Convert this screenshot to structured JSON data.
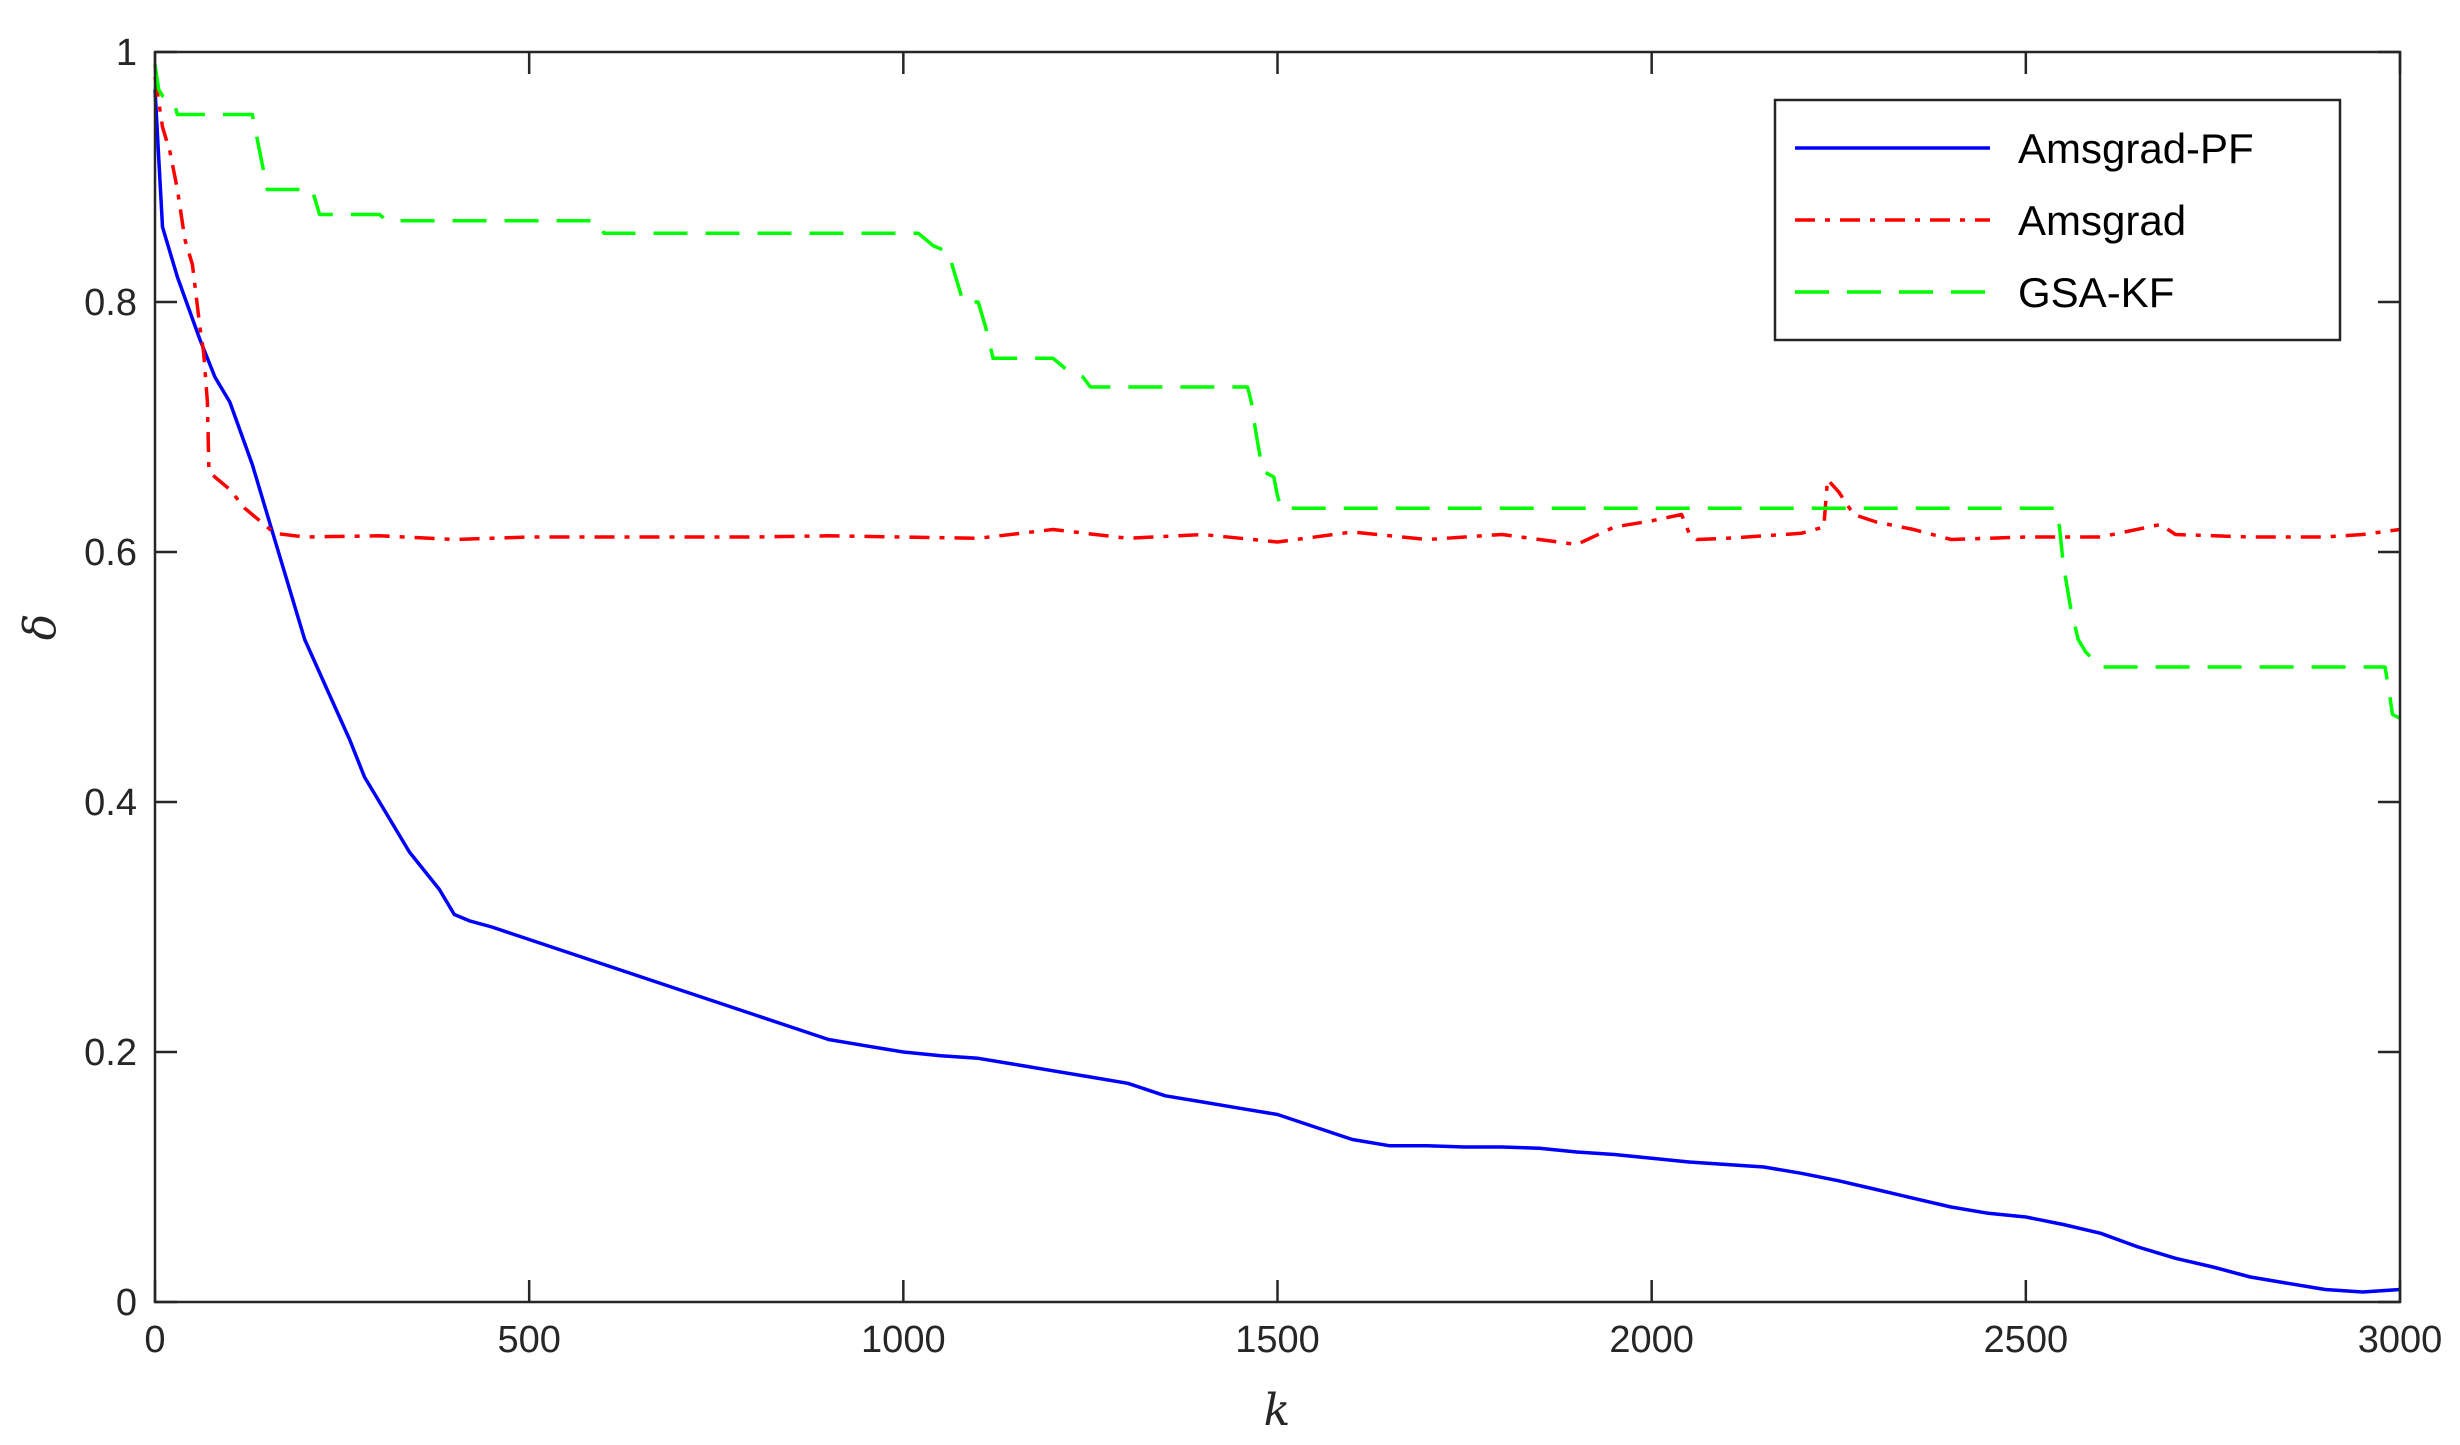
{
  "chart_data": {
    "type": "line",
    "title": "",
    "xlabel": "k",
    "ylabel": "δ",
    "xlim": [
      0,
      3000
    ],
    "ylim": [
      0,
      1
    ],
    "xticks": [
      0,
      500,
      1000,
      1500,
      2000,
      2500,
      3000
    ],
    "yticks": [
      0,
      0.2,
      0.4,
      0.6,
      0.8,
      1
    ],
    "xtick_labels": [
      "0",
      "500",
      "1000",
      "1500",
      "2000",
      "2500",
      "3000"
    ],
    "ytick_labels": [
      "0",
      "0.2",
      "0.4",
      "0.6",
      "0.8",
      "1"
    ],
    "grid": false,
    "legend_position": "top-right",
    "series": [
      {
        "name": "Amsgrad-PF",
        "color": "#0000ff",
        "dash": "solid",
        "x": [
          0,
          10,
          30,
          60,
          80,
          100,
          130,
          160,
          180,
          200,
          230,
          260,
          280,
          300,
          340,
          380,
          400,
          420,
          450,
          500,
          550,
          600,
          650,
          700,
          750,
          800,
          850,
          900,
          950,
          1000,
          1050,
          1100,
          1150,
          1200,
          1250,
          1300,
          1350,
          1400,
          1450,
          1500,
          1550,
          1600,
          1650,
          1700,
          1750,
          1800,
          1850,
          1900,
          1950,
          2000,
          2050,
          2100,
          2150,
          2200,
          2250,
          2300,
          2350,
          2400,
          2450,
          2500,
          2550,
          2600,
          2650,
          2700,
          2750,
          2800,
          2850,
          2900,
          2950,
          3000
        ],
        "y": [
          0.97,
          0.86,
          0.82,
          0.77,
          0.74,
          0.72,
          0.67,
          0.61,
          0.57,
          0.53,
          0.49,
          0.45,
          0.42,
          0.4,
          0.36,
          0.33,
          0.31,
          0.305,
          0.3,
          0.29,
          0.28,
          0.27,
          0.26,
          0.25,
          0.24,
          0.23,
          0.22,
          0.21,
          0.205,
          0.2,
          0.197,
          0.195,
          0.19,
          0.185,
          0.18,
          0.175,
          0.165,
          0.16,
          0.155,
          0.15,
          0.14,
          0.13,
          0.125,
          0.125,
          0.124,
          0.124,
          0.123,
          0.12,
          0.118,
          0.115,
          0.112,
          0.11,
          0.108,
          0.103,
          0.097,
          0.09,
          0.083,
          0.076,
          0.071,
          0.068,
          0.062,
          0.055,
          0.044,
          0.035,
          0.028,
          0.02,
          0.015,
          0.01,
          0.008,
          0.01
        ]
      },
      {
        "name": "Amsgrad",
        "color": "#ff0000",
        "dash": "dashdot",
        "x": [
          0,
          10,
          20,
          30,
          40,
          50,
          60,
          65,
          70,
          72,
          80,
          100,
          120,
          140,
          160,
          200,
          300,
          400,
          500,
          600,
          700,
          800,
          900,
          1000,
          1100,
          1200,
          1300,
          1400,
          1500,
          1600,
          1700,
          1800,
          1900,
          1950,
          2000,
          2040,
          2050,
          2060,
          2100,
          2200,
          2230,
          2235,
          2250,
          2270,
          2300,
          2350,
          2400,
          2500,
          2600,
          2680,
          2700,
          2800,
          2900,
          2950,
          3000
        ],
        "y": [
          0.98,
          0.94,
          0.92,
          0.89,
          0.85,
          0.83,
          0.78,
          0.76,
          0.72,
          0.665,
          0.66,
          0.65,
          0.635,
          0.625,
          0.615,
          0.612,
          0.613,
          0.61,
          0.612,
          0.612,
          0.612,
          0.612,
          0.613,
          0.612,
          0.611,
          0.618,
          0.611,
          0.614,
          0.608,
          0.616,
          0.61,
          0.614,
          0.606,
          0.62,
          0.625,
          0.63,
          0.615,
          0.61,
          0.611,
          0.615,
          0.62,
          0.658,
          0.648,
          0.63,
          0.624,
          0.618,
          0.61,
          0.612,
          0.612,
          0.622,
          0.614,
          0.612,
          0.612,
          0.614,
          0.618
        ]
      },
      {
        "name": "GSA-KF",
        "color": "#00ff00",
        "dash": "dashed",
        "x": [
          0,
          5,
          10,
          25,
          30,
          130,
          140,
          150,
          210,
          220,
          300,
          310,
          590,
          600,
          1020,
          1030,
          1040,
          1060,
          1070,
          1080,
          1100,
          1110,
          1120,
          1200,
          1210,
          1220,
          1240,
          1250,
          1460,
          1465,
          1470,
          1480,
          1495,
          1500,
          1505,
          2540,
          2545,
          2550,
          2560,
          2570,
          2580,
          2600,
          2980,
          2985,
          2990,
          3000
        ],
        "y": [
          0.99,
          0.97,
          0.965,
          0.96,
          0.95,
          0.95,
          0.92,
          0.89,
          0.89,
          0.87,
          0.87,
          0.865,
          0.865,
          0.855,
          0.855,
          0.85,
          0.845,
          0.84,
          0.82,
          0.8,
          0.8,
          0.78,
          0.755,
          0.755,
          0.75,
          0.745,
          0.74,
          0.732,
          0.732,
          0.72,
          0.7,
          0.665,
          0.66,
          0.645,
          0.635,
          0.635,
          0.62,
          0.59,
          0.555,
          0.53,
          0.52,
          0.508,
          0.508,
          0.49,
          0.47,
          0.467
        ]
      }
    ]
  }
}
